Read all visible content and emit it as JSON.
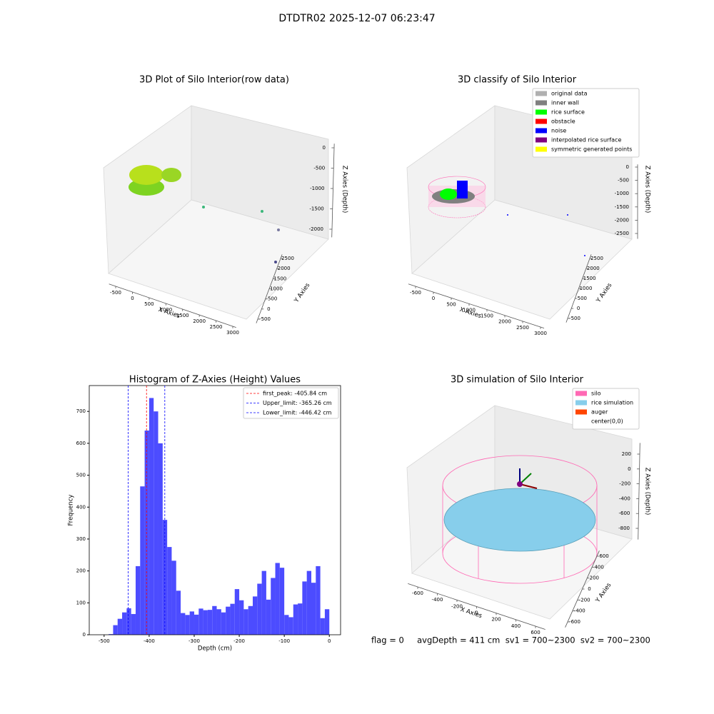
{
  "title": "DTDTR02 2025-12-07 06:23:47",
  "footer": "flag = 0     avgDepth = 411 cm  sv1 = 700~2300  sv2 = 700~2300",
  "chart_data": [
    {
      "type": "scatter3d",
      "title": "3D Plot of Silo Interior(row data)",
      "xlabel": "X Axies",
      "ylabel": "Y Axies",
      "zlabel": "Z Axies (Depth)",
      "xlim": [
        -700,
        3100
      ],
      "xticks": [
        -500,
        0,
        500,
        1000,
        1500,
        2000,
        2500,
        3000
      ],
      "ylim": [
        -700,
        2700
      ],
      "yticks": [
        -500,
        0,
        500,
        1000,
        1500,
        2000,
        2500
      ],
      "zlim": [
        -2200,
        100
      ],
      "zticks": [
        0,
        -500,
        -1000,
        -1500,
        -2000
      ]
    },
    {
      "type": "scatter3d",
      "title": "3D classify of Silo Interior",
      "xlabel": "X Axies",
      "ylabel": "Y Axies",
      "zlabel": "Z Axies (Depth)",
      "xlim": [
        -700,
        3100
      ],
      "xticks": [
        -500,
        0,
        500,
        1000,
        1500,
        2000,
        2500,
        3000
      ],
      "ylim": [
        -700,
        2700
      ],
      "yticks": [
        -500,
        0,
        500,
        1000,
        1500,
        2000,
        2500
      ],
      "zlim": [
        -2700,
        100
      ],
      "zticks": [
        0,
        -500,
        -1000,
        -1500,
        -2000,
        -2500
      ],
      "legend": [
        {
          "name": "original data",
          "color": "#b0b0b0"
        },
        {
          "name": "inner wall",
          "color": "#808080"
        },
        {
          "name": "rice surface",
          "color": "#00ff00"
        },
        {
          "name": "obstacle",
          "color": "#ff0000"
        },
        {
          "name": "noise",
          "color": "#0000ff"
        },
        {
          "name": "interpolated rice surface",
          "color": "#800080"
        },
        {
          "name": "symmetric generated points",
          "color": "#ffff00"
        }
      ]
    },
    {
      "type": "histogram",
      "title": "Histogram of Z-Axies (Height) Values",
      "xlabel": "Depth (cm)",
      "ylabel": "Frequency",
      "color": "#4c4cff",
      "bins": [
        -490,
        -480,
        -470,
        -460,
        -450,
        -440,
        -430,
        -420,
        -410,
        -400,
        -390,
        -380,
        -370,
        -360,
        -350,
        -340,
        -330,
        -320,
        -310,
        -300,
        -290,
        -280,
        -270,
        -260,
        -250,
        -240,
        -230,
        -220,
        -210,
        -200,
        -190,
        -180,
        -170,
        -160,
        -150,
        -140,
        -130,
        -120,
        -110,
        -100,
        -90,
        -80,
        -70,
        -60,
        -50,
        -40,
        -30,
        -20,
        -10,
        0
      ],
      "values": [
        2,
        30,
        50,
        70,
        83,
        65,
        215,
        465,
        640,
        742,
        700,
        600,
        360,
        275,
        232,
        138,
        68,
        62,
        73,
        63,
        82,
        77,
        78,
        90,
        80,
        70,
        88,
        97,
        143,
        108,
        80,
        90,
        120,
        160,
        200,
        110,
        178,
        225,
        210,
        62,
        55,
        95,
        98,
        167,
        200,
        163,
        215,
        52,
        80
      ],
      "xlim": [
        -533,
        25
      ],
      "xticks": [
        -500,
        -400,
        -300,
        -200,
        -100,
        0
      ],
      "ylim": [
        0,
        781
      ],
      "yticks": [
        0,
        100,
        200,
        300,
        400,
        500,
        600,
        700
      ],
      "vlines": [
        {
          "label": "first_peak: -405.84 cm",
          "value": -405.84,
          "color": "#ff0000"
        },
        {
          "label": "Upper_limit: -365.26 cm",
          "value": -365.26,
          "color": "#0000ff"
        },
        {
          "label": "Lower_limit: -446.42 cm",
          "value": -446.42,
          "color": "#0000ff"
        }
      ]
    },
    {
      "type": "scatter3d",
      "title": "3D simulation of Silo Interior",
      "xlabel": "X Axies",
      "ylabel": "Y Axies",
      "zlabel": "Z Axies (Depth)",
      "xlim": [
        -700,
        700
      ],
      "xticks": [
        -600,
        -400,
        -200,
        0,
        200,
        400,
        600
      ],
      "ylim": [
        -700,
        700
      ],
      "yticks": [
        -600,
        -400,
        -200,
        0,
        200,
        400,
        600
      ],
      "zlim": [
        -950,
        350
      ],
      "zticks": [
        200,
        0,
        -200,
        -400,
        -600,
        -800
      ],
      "legend": [
        {
          "name": "silo",
          "color": "#ff69b4"
        },
        {
          "name": "rice simulation",
          "color": "#87ceeb"
        },
        {
          "name": "auger",
          "color": "#ff4500"
        },
        {
          "name": "center(0,0)",
          "color": "#ffffff"
        }
      ]
    }
  ]
}
